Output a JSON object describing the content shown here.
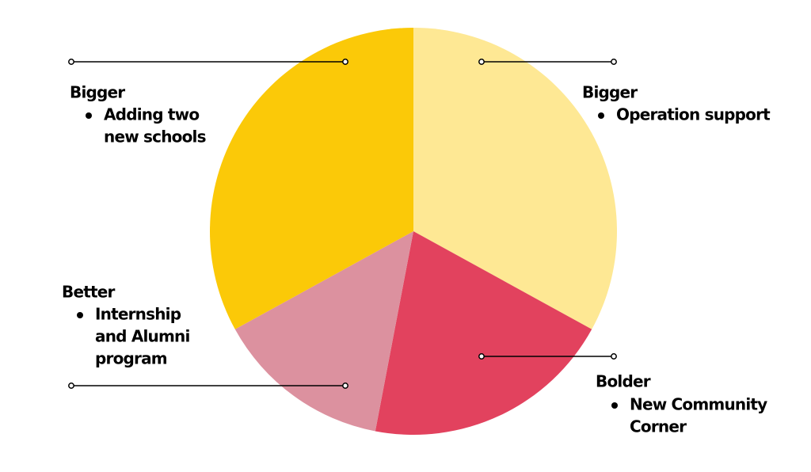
{
  "chart_data": {
    "type": "pie",
    "categories": [
      "Bigger",
      "Bolder",
      "Better",
      "Bigger"
    ],
    "notes": [
      [
        "Operation support"
      ],
      [
        "New Community",
        "Corner"
      ],
      [
        "Internship",
        "and Alumni",
        "program"
      ],
      [
        "Adding two",
        "new schools"
      ]
    ],
    "values": [
      33,
      20,
      14,
      33
    ],
    "colors": [
      "#fee894",
      "#e2425e",
      "#dc919f",
      "#fbc908"
    ]
  }
}
